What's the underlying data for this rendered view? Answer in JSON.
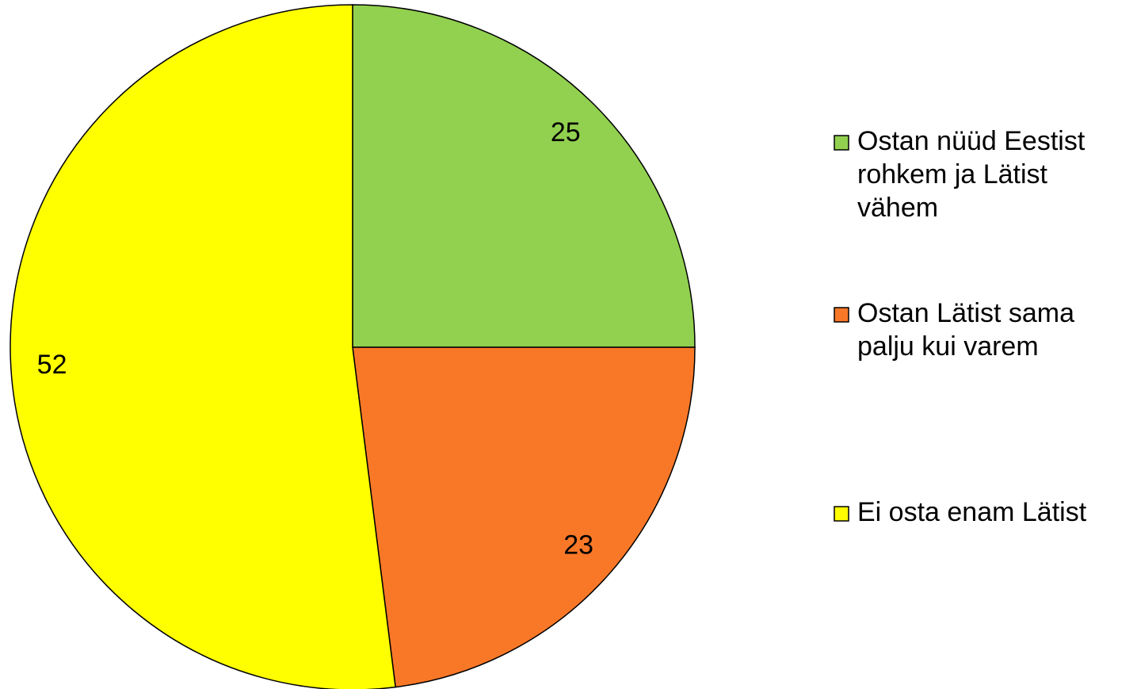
{
  "chart_data": {
    "type": "pie",
    "categories": [
      "Ostan nüüd Eestist rohkem ja Lätist vähem",
      "Ostan Lätist sama palju kui varem",
      "Ei osta enam Lätist"
    ],
    "values": [
      25,
      23,
      52
    ],
    "colors": [
      "#92d050",
      "#f97828",
      "#ffff00"
    ],
    "legend": "right"
  }
}
